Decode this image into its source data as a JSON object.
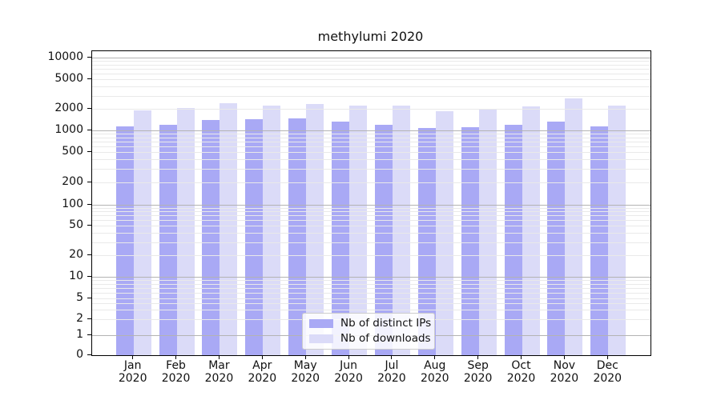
{
  "chart_data": {
    "type": "bar",
    "title": "methylumi 2020",
    "categories": [
      "Jan",
      "Feb",
      "Mar",
      "Apr",
      "May",
      "Jun",
      "Jul",
      "Aug",
      "Sep",
      "Oct",
      "Nov",
      "Dec"
    ],
    "x_year": "2020",
    "series": [
      {
        "name": "Nb of distinct IPs",
        "color": "#a9a9f5",
        "values": [
          1140,
          1210,
          1400,
          1440,
          1470,
          1320,
          1200,
          1090,
          1100,
          1210,
          1330,
          1140
        ]
      },
      {
        "name": "Nb of downloads",
        "color": "#dbdbf8",
        "values": [
          1890,
          2030,
          2350,
          2220,
          2340,
          2200,
          2230,
          1860,
          1960,
          2160,
          2750,
          2190
        ]
      }
    ],
    "yscale": "symlog",
    "ylim": [
      0,
      12000
    ],
    "y_ticks": [
      "10000",
      "5000",
      "2000",
      "1000",
      "500",
      "200",
      "100",
      "50",
      "20",
      "10",
      "5",
      "2",
      "1",
      "0"
    ],
    "grid": true,
    "gridlines_over_bars": true,
    "legend_position": "inside lower center",
    "colors": {
      "axis": "#000000",
      "grid_major": "#b3b3b3",
      "grid_minor": "#e9e9e9",
      "background": "#ffffff"
    }
  }
}
